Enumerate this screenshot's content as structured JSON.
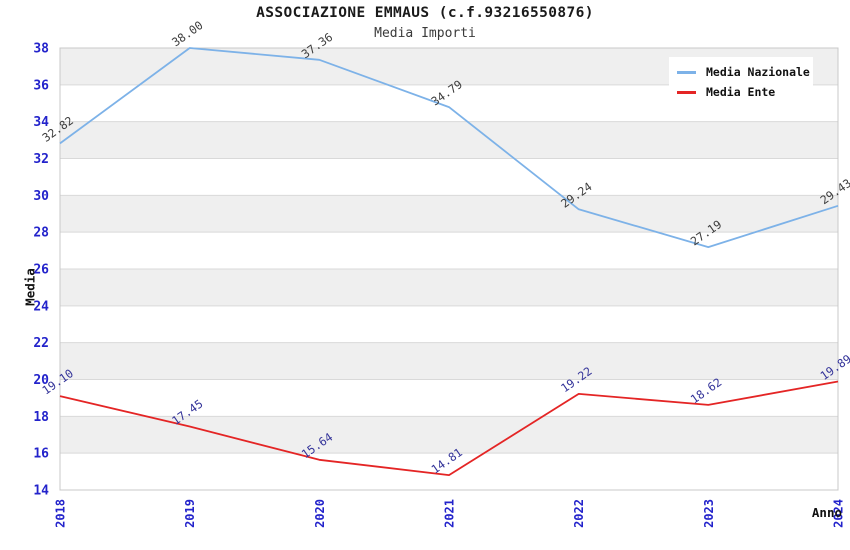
{
  "colors": {
    "band": "#efefef",
    "grid": "#d9d9d9",
    "border": "#c8c8c8",
    "tick_label": "#2323cb",
    "blue_line": "#7db2e8",
    "red_line": "#e42525",
    "blue_series_point_label": "#3d3d3d",
    "red_series_point_label": "#333399"
  },
  "chart_data": {
    "type": "line",
    "title": "ASSOCIAZIONE EMMAUS (c.f.93216550876)",
    "subtitle": "Media Importi",
    "xlabel": "Anno",
    "ylabel": "Media",
    "categories": [
      "2018",
      "2019",
      "2020",
      "2021",
      "2022",
      "2023",
      "2024"
    ],
    "series": [
      {
        "name": "Media Nazionale",
        "color": "#7db2e8",
        "label_color": "#3d3d3d",
        "values": [
          32.82,
          38.0,
          37.36,
          34.79,
          29.24,
          27.19,
          29.43
        ],
        "labels": [
          "32.82",
          "38.00",
          "37.36",
          "34.79",
          "29.24",
          "27.19",
          "29.43"
        ]
      },
      {
        "name": "Media Ente",
        "color": "#e42525",
        "label_color": "#333399",
        "values": [
          19.1,
          17.45,
          15.64,
          14.81,
          19.22,
          18.62,
          19.89
        ],
        "labels": [
          "19.10",
          "17.45",
          "15.64",
          "14.81",
          "19.22",
          "18.62",
          "19.89"
        ]
      }
    ],
    "ylim": [
      14,
      38
    ],
    "ytick_step": 2,
    "yticks": [
      "14",
      "16",
      "18",
      "20",
      "22",
      "24",
      "26",
      "28",
      "30",
      "32",
      "34",
      "36",
      "38"
    ],
    "legend_position": "top-right",
    "grid": "horizontal",
    "band_fill": true
  }
}
